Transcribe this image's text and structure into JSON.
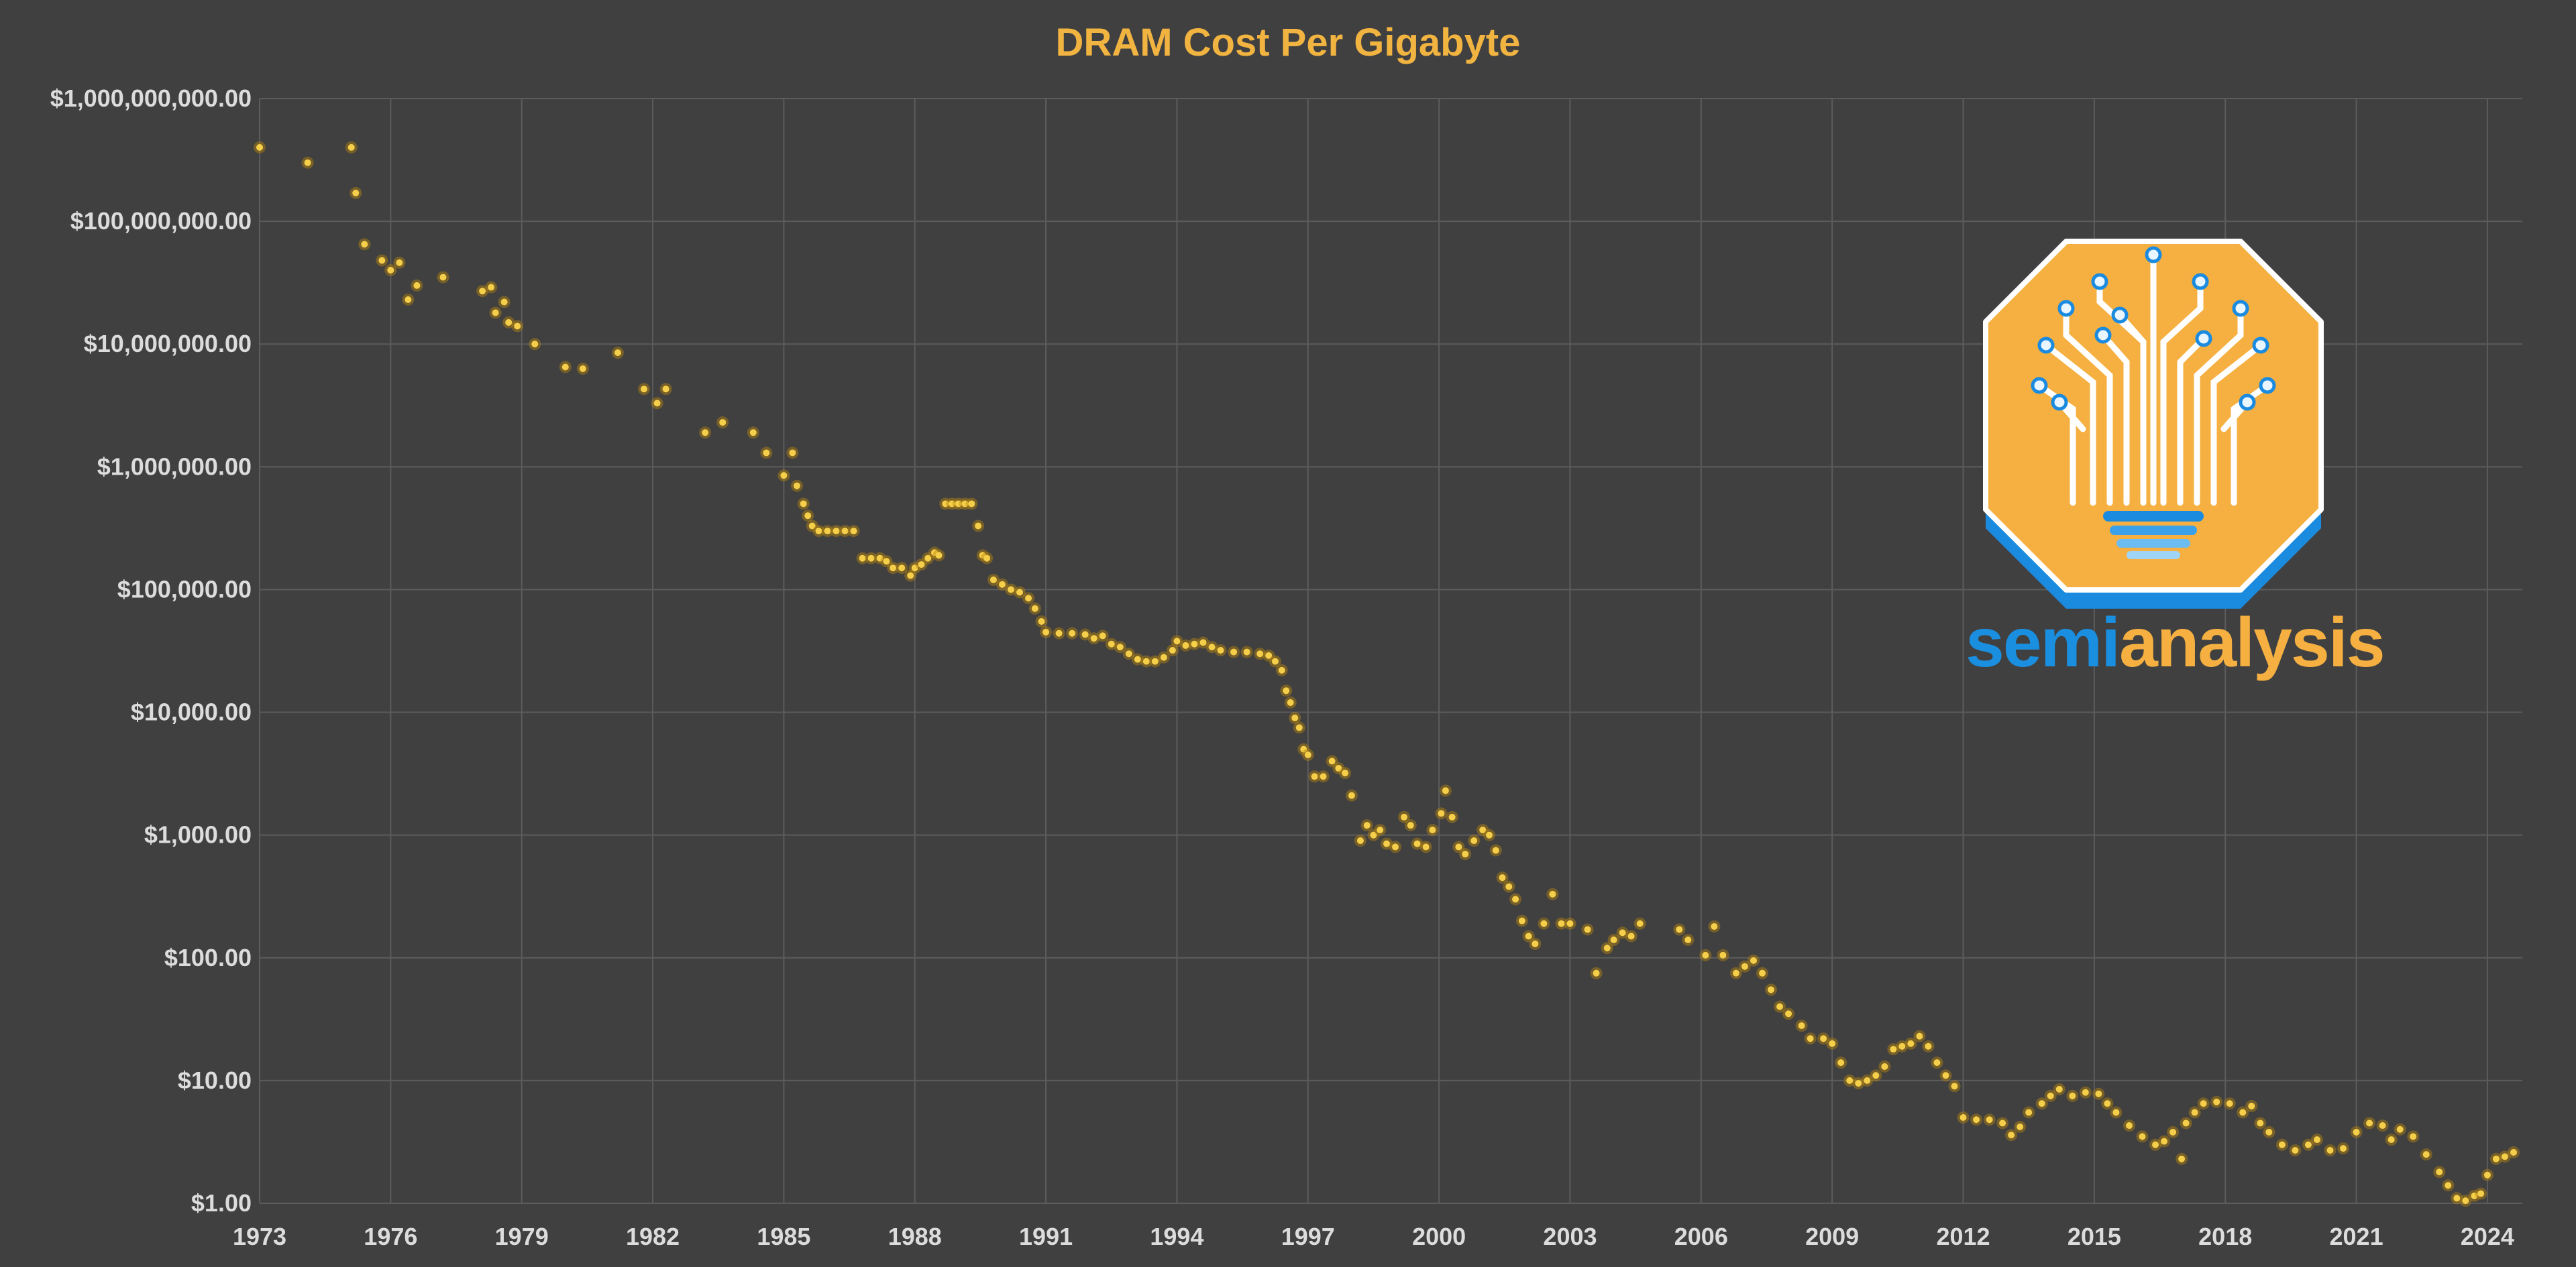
{
  "chart_data": {
    "type": "scatter",
    "title": "DRAM Cost Per Gigabyte",
    "xlabel": "",
    "ylabel": "",
    "x_scale": "linear",
    "y_scale": "log",
    "xlim": [
      1973,
      2024.8
    ],
    "ylim": [
      1,
      1000000000
    ],
    "grid": true,
    "legend": "none",
    "marker_color": "#f5cf4a",
    "x_ticks": [
      "1973",
      "1976",
      "1979",
      "1982",
      "1985",
      "1988",
      "1991",
      "1994",
      "1997",
      "2000",
      "2003",
      "2006",
      "2009",
      "2012",
      "2015",
      "2018",
      "2021",
      "2024"
    ],
    "y_ticks": [
      {
        "value": 1000000000,
        "label": "$1,000,000,000.00"
      },
      {
        "value": 100000000,
        "label": "$100,000,000.00"
      },
      {
        "value": 10000000,
        "label": "$10,000,000.00"
      },
      {
        "value": 1000000,
        "label": "$1,000,000.00"
      },
      {
        "value": 100000,
        "label": "$100,000.00"
      },
      {
        "value": 10000,
        "label": "$10,000.00"
      },
      {
        "value": 1000,
        "label": "$1,000.00"
      },
      {
        "value": 100,
        "label": "$100.00"
      },
      {
        "value": 10,
        "label": "$10.00"
      },
      {
        "value": 1,
        "label": "$1.00"
      }
    ],
    "points": [
      [
        1973.0,
        400000000
      ],
      [
        1974.1,
        300000000
      ],
      [
        1975.1,
        400000000
      ],
      [
        1975.2,
        170000000
      ],
      [
        1975.4,
        65000000
      ],
      [
        1975.8,
        48000000
      ],
      [
        1976.0,
        40000000
      ],
      [
        1976.2,
        46000000
      ],
      [
        1976.4,
        23000000
      ],
      [
        1976.6,
        30000000
      ],
      [
        1977.2,
        35000000
      ],
      [
        1978.1,
        27000000
      ],
      [
        1978.3,
        29000000
      ],
      [
        1978.4,
        18000000
      ],
      [
        1978.6,
        22000000
      ],
      [
        1978.7,
        15000000
      ],
      [
        1978.9,
        14000000
      ],
      [
        1979.3,
        10000000
      ],
      [
        1980.0,
        6500000
      ],
      [
        1980.4,
        6300000
      ],
      [
        1981.2,
        8500000
      ],
      [
        1981.8,
        4300000
      ],
      [
        1982.1,
        3300000
      ],
      [
        1982.3,
        4300000
      ],
      [
        1983.2,
        1900000
      ],
      [
        1983.6,
        2300000
      ],
      [
        1984.3,
        1900000
      ],
      [
        1984.6,
        1300000
      ],
      [
        1985.2,
        1300000
      ],
      [
        1985.0,
        850000
      ],
      [
        1985.3,
        700000
      ],
      [
        1985.45,
        500000
      ],
      [
        1985.55,
        400000
      ],
      [
        1985.65,
        330000
      ],
      [
        1985.8,
        300000
      ],
      [
        1986.0,
        300000
      ],
      [
        1986.2,
        300000
      ],
      [
        1986.4,
        300000
      ],
      [
        1986.6,
        300000
      ],
      [
        1986.8,
        180000
      ],
      [
        1987.0,
        180000
      ],
      [
        1987.2,
        180000
      ],
      [
        1987.35,
        170000
      ],
      [
        1987.5,
        150000
      ],
      [
        1987.7,
        150000
      ],
      [
        1987.9,
        130000
      ],
      [
        1988.0,
        150000
      ],
      [
        1988.15,
        160000
      ],
      [
        1988.3,
        180000
      ],
      [
        1988.45,
        200000
      ],
      [
        1988.55,
        190000
      ],
      [
        1988.7,
        500000
      ],
      [
        1988.85,
        500000
      ],
      [
        1989.0,
        500000
      ],
      [
        1989.15,
        500000
      ],
      [
        1989.3,
        500000
      ],
      [
        1989.45,
        330000
      ],
      [
        1989.55,
        190000
      ],
      [
        1989.65,
        180000
      ],
      [
        1989.8,
        120000
      ],
      [
        1990.0,
        110000
      ],
      [
        1990.2,
        100000
      ],
      [
        1990.4,
        95000
      ],
      [
        1990.6,
        85000
      ],
      [
        1990.75,
        70000
      ],
      [
        1990.9,
        55000
      ],
      [
        1991.0,
        45000
      ],
      [
        1991.3,
        44000
      ],
      [
        1991.6,
        44000
      ],
      [
        1991.9,
        43000
      ],
      [
        1992.1,
        40000
      ],
      [
        1992.3,
        42000
      ],
      [
        1992.5,
        36000
      ],
      [
        1992.7,
        34000
      ],
      [
        1992.9,
        30000
      ],
      [
        1993.1,
        27000
      ],
      [
        1993.3,
        26000
      ],
      [
        1993.5,
        26000
      ],
      [
        1993.7,
        28000
      ],
      [
        1993.9,
        32000
      ],
      [
        1994.0,
        38000
      ],
      [
        1994.2,
        35000
      ],
      [
        1994.4,
        36000
      ],
      [
        1994.6,
        37000
      ],
      [
        1994.8,
        34000
      ],
      [
        1995.0,
        32000
      ],
      [
        1995.3,
        31000
      ],
      [
        1995.6,
        31000
      ],
      [
        1995.9,
        30000
      ],
      [
        1996.1,
        29000
      ],
      [
        1996.25,
        26000
      ],
      [
        1996.4,
        22000
      ],
      [
        1996.5,
        15000
      ],
      [
        1996.6,
        12000
      ],
      [
        1996.7,
        9000
      ],
      [
        1996.8,
        7500
      ],
      [
        1996.9,
        5000
      ],
      [
        1997.0,
        4500
      ],
      [
        1997.15,
        3000
      ],
      [
        1997.35,
        3000
      ],
      [
        1997.55,
        4000
      ],
      [
        1997.7,
        3500
      ],
      [
        1997.85,
        3200
      ],
      [
        1998.0,
        2100
      ],
      [
        1998.2,
        900
      ],
      [
        1998.35,
        1200
      ],
      [
        1998.5,
        1000
      ],
      [
        1998.65,
        1100
      ],
      [
        1998.8,
        850
      ],
      [
        1999.0,
        800
      ],
      [
        1999.2,
        1400
      ],
      [
        1999.35,
        1200
      ],
      [
        1999.5,
        850
      ],
      [
        1999.7,
        800
      ],
      [
        1999.85,
        1100
      ],
      [
        2000.05,
        1500
      ],
      [
        2000.15,
        2300
      ],
      [
        2000.3,
        1400
      ],
      [
        2000.45,
        800
      ],
      [
        2000.6,
        700
      ],
      [
        2000.8,
        900
      ],
      [
        2001.0,
        1100
      ],
      [
        2001.15,
        1000
      ],
      [
        2001.3,
        750
      ],
      [
        2001.45,
        450
      ],
      [
        2001.6,
        380
      ],
      [
        2001.75,
        300
      ],
      [
        2001.9,
        200
      ],
      [
        2002.05,
        150
      ],
      [
        2002.2,
        130
      ],
      [
        2002.4,
        190
      ],
      [
        2002.6,
        330
      ],
      [
        2002.8,
        190
      ],
      [
        2003.0,
        190
      ],
      [
        2003.4,
        170
      ],
      [
        2003.6,
        75
      ],
      [
        2003.85,
        120
      ],
      [
        2004.0,
        140
      ],
      [
        2004.2,
        160
      ],
      [
        2004.4,
        150
      ],
      [
        2004.6,
        190
      ],
      [
        2005.5,
        170
      ],
      [
        2005.7,
        140
      ],
      [
        2006.1,
        105
      ],
      [
        2006.3,
        180
      ],
      [
        2006.5,
        105
      ],
      [
        2006.8,
        75
      ],
      [
        2007.0,
        85
      ],
      [
        2007.2,
        95
      ],
      [
        2007.4,
        75
      ],
      [
        2007.6,
        55
      ],
      [
        2007.8,
        40
      ],
      [
        2008.0,
        35
      ],
      [
        2008.3,
        28
      ],
      [
        2008.5,
        22
      ],
      [
        2008.8,
        22
      ],
      [
        2009.0,
        20
      ],
      [
        2009.2,
        14
      ],
      [
        2009.4,
        10
      ],
      [
        2009.6,
        9.5
      ],
      [
        2009.8,
        10
      ],
      [
        2010.0,
        11
      ],
      [
        2010.2,
        13
      ],
      [
        2010.4,
        18
      ],
      [
        2010.6,
        19
      ],
      [
        2010.8,
        20
      ],
      [
        2011.0,
        23
      ],
      [
        2011.2,
        19
      ],
      [
        2011.4,
        14
      ],
      [
        2011.6,
        11
      ],
      [
        2011.8,
        9
      ],
      [
        2012.0,
        5
      ],
      [
        2012.3,
        4.8
      ],
      [
        2012.6,
        4.8
      ],
      [
        2012.9,
        4.5
      ],
      [
        2013.1,
        3.6
      ],
      [
        2013.3,
        4.2
      ],
      [
        2013.5,
        5.5
      ],
      [
        2013.8,
        6.5
      ],
      [
        2014.0,
        7.5
      ],
      [
        2014.2,
        8.5
      ],
      [
        2014.5,
        7.5
      ],
      [
        2014.8,
        8
      ],
      [
        2015.1,
        7.8
      ],
      [
        2015.3,
        6.5
      ],
      [
        2015.5,
        5.5
      ],
      [
        2015.8,
        4.3
      ],
      [
        2016.1,
        3.5
      ],
      [
        2016.4,
        3.0
      ],
      [
        2016.6,
        3.2
      ],
      [
        2016.8,
        3.8
      ],
      [
        2017.0,
        2.3
      ],
      [
        2017.1,
        4.5
      ],
      [
        2017.3,
        5.5
      ],
      [
        2017.5,
        6.5
      ],
      [
        2017.8,
        6.7
      ],
      [
        2018.1,
        6.5
      ],
      [
        2018.4,
        5.5
      ],
      [
        2018.6,
        6.2
      ],
      [
        2018.8,
        4.5
      ],
      [
        2019.0,
        3.8
      ],
      [
        2019.3,
        3.0
      ],
      [
        2019.6,
        2.7
      ],
      [
        2019.9,
        3.0
      ],
      [
        2020.1,
        3.3
      ],
      [
        2020.4,
        2.7
      ],
      [
        2020.7,
        2.8
      ],
      [
        2021.0,
        3.8
      ],
      [
        2021.3,
        4.5
      ],
      [
        2021.6,
        4.3
      ],
      [
        2021.8,
        3.3
      ],
      [
        2022.0,
        4.0
      ],
      [
        2022.3,
        3.5
      ],
      [
        2022.6,
        2.5
      ],
      [
        2022.9,
        1.8
      ],
      [
        2023.1,
        1.4
      ],
      [
        2023.3,
        1.1
      ],
      [
        2023.5,
        1.05
      ],
      [
        2023.7,
        1.15
      ],
      [
        2023.85,
        1.2
      ],
      [
        2024.0,
        1.7
      ],
      [
        2024.2,
        2.3
      ],
      [
        2024.4,
        2.4
      ],
      [
        2024.6,
        2.6
      ]
    ]
  },
  "logo": {
    "text_part1": "semi",
    "text_part2": "analysis"
  }
}
